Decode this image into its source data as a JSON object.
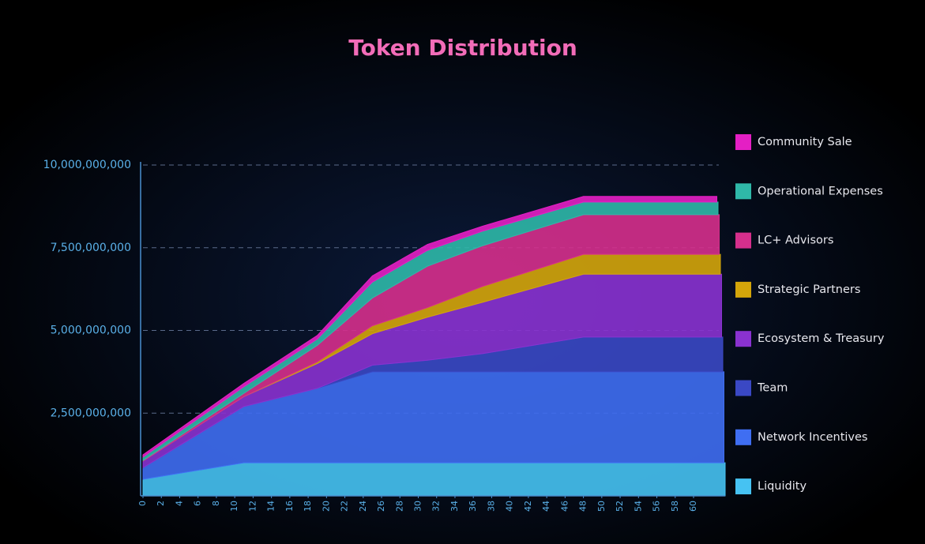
{
  "chart_data": {
    "type": "stacked-area",
    "title": "Token Distribution",
    "x": [
      0,
      11,
      19,
      25,
      31,
      37,
      48,
      60
    ],
    "xlim": [
      0,
      60
    ],
    "xticks": [
      0,
      2,
      4,
      6,
      8,
      10,
      12,
      14,
      16,
      18,
      20,
      22,
      24,
      26,
      28,
      30,
      32,
      34,
      36,
      38,
      40,
      42,
      44,
      46,
      48,
      50,
      52,
      54,
      56,
      58,
      60
    ],
    "ylim": [
      0,
      10000000000
    ],
    "yticks": [
      {
        "value": 2500000000,
        "label": "2,500,000,000"
      },
      {
        "value": 5000000000,
        "label": "5,000,000,000"
      },
      {
        "value": 7500000000,
        "label": "7,500,000,000"
      },
      {
        "value": 10000000000,
        "label": "10,000,000,000"
      }
    ],
    "grid": true,
    "legend": "right",
    "series": [
      {
        "name": "Community Sale",
        "color": "#e41fc4",
        "values": [
          70000000,
          100000000,
          110000000,
          190000000,
          180000000,
          150000000,
          170000000,
          170000000
        ]
      },
      {
        "name": "Operational Expenses",
        "color": "#2fb8a8",
        "values": [
          100000000,
          200000000,
          190000000,
          480000000,
          480000000,
          440000000,
          380000000,
          380000000
        ]
      },
      {
        "name": "LC+ Advisors",
        "color": "#d62f8c",
        "values": [
          20000000,
          100000000,
          500000000,
          840000000,
          1250000000,
          1230000000,
          1200000000,
          1200000000
        ]
      },
      {
        "name": "Strategic Partners",
        "color": "#d4a50a",
        "values": [
          0,
          0,
          50000000,
          240000000,
          290000000,
          480000000,
          600000000,
          600000000
        ]
      },
      {
        "name": "Ecosystem & Treasury",
        "color": "#8a32d0",
        "values": [
          200000000,
          300000000,
          750000000,
          950000000,
          1300000000,
          1550000000,
          1900000000,
          1900000000
        ]
      },
      {
        "name": "Team",
        "color": "#3a48c4",
        "values": [
          0,
          0,
          0,
          200000000,
          350000000,
          550000000,
          1050000000,
          1050000000
        ]
      },
      {
        "name": "Network Incentives",
        "color": "#3f6ef2",
        "values": [
          350000000,
          1700000000,
          2250000000,
          2750000000,
          2750000000,
          2750000000,
          2750000000,
          2750000000
        ]
      },
      {
        "name": "Liquidity",
        "color": "#46c2f2",
        "values": [
          500000000,
          1000000000,
          1000000000,
          1000000000,
          1000000000,
          1000000000,
          1000000000,
          1000000000
        ]
      }
    ]
  }
}
